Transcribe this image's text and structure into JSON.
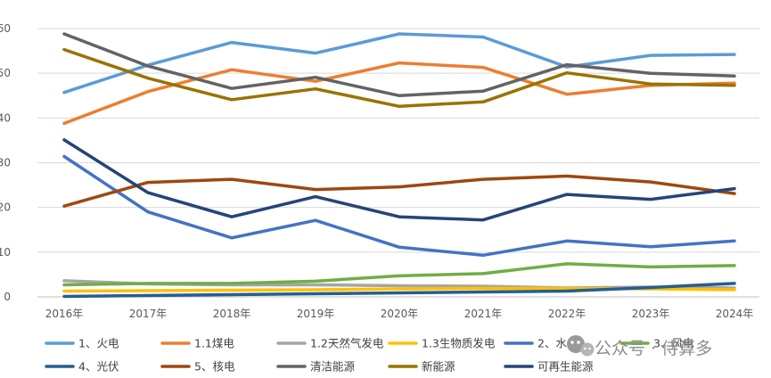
{
  "chart_data": {
    "type": "line",
    "title": "",
    "xlabel": "",
    "ylabel": "",
    "ylim": [
      0,
      60
    ],
    "y_ticks": [
      0,
      10,
      20,
      30,
      40,
      50,
      60
    ],
    "y_tick_labels": [
      "0",
      "10",
      "20",
      "30",
      "40",
      "50",
      "60"
    ],
    "grid": "horizontal",
    "legend_position": "bottom",
    "categories": [
      "2016年",
      "2017年",
      "2018年",
      "2019年",
      "2020年",
      "2021年",
      "2022年",
      "2023年",
      "2024年"
    ],
    "series": [
      {
        "name": "1、火电",
        "color": "#5b9bd5",
        "values": [
          45.7,
          51.8,
          56.9,
          54.5,
          58.8,
          58.1,
          51.4,
          54.0,
          54.2
        ]
      },
      {
        "name": "1.1煤电",
        "color": "#ed7d31",
        "values": [
          38.8,
          45.9,
          50.8,
          48.2,
          52.3,
          51.3,
          45.3,
          47.3,
          47.8
        ]
      },
      {
        "name": "1.2天然气发电",
        "color": "#a5a5a5",
        "values": [
          3.6,
          2.9,
          2.7,
          2.7,
          2.5,
          2.4,
          2.0,
          2.2,
          2.0
        ]
      },
      {
        "name": "1.3生物质发电",
        "color": "#ffc000",
        "values": [
          1.3,
          1.4,
          1.5,
          1.6,
          1.8,
          1.9,
          1.9,
          1.8,
          1.6
        ]
      },
      {
        "name": "2、水电",
        "color": "#4472c4",
        "values": [
          31.4,
          19.0,
          13.2,
          17.1,
          11.1,
          9.3,
          12.5,
          11.2,
          12.5
        ]
      },
      {
        "name": "3、风电",
        "color": "#70ad47",
        "values": [
          2.7,
          3.0,
          3.0,
          3.5,
          4.7,
          5.2,
          7.4,
          6.7,
          7.0
        ]
      },
      {
        "name": "4、光伏",
        "color": "#255e91",
        "values": [
          0.1,
          0.3,
          0.5,
          0.7,
          0.9,
          1.1,
          1.3,
          2.1,
          3.0
        ]
      },
      {
        "name": "5、核电",
        "color": "#9e480e",
        "values": [
          20.3,
          25.6,
          26.3,
          24.0,
          24.6,
          26.3,
          27.0,
          25.7,
          23.1
        ]
      },
      {
        "name": "清洁能源",
        "color": "#636363",
        "values": [
          58.8,
          51.6,
          46.6,
          49.1,
          45.0,
          46.0,
          51.9,
          50.0,
          49.4
        ]
      },
      {
        "name": "新能源",
        "color": "#997300",
        "values": [
          55.3,
          48.9,
          44.1,
          46.5,
          42.6,
          43.6,
          50.1,
          47.6,
          47.3
        ]
      },
      {
        "name": "可再生能源",
        "color": "#264478",
        "values": [
          35.1,
          23.3,
          17.9,
          22.4,
          17.9,
          17.2,
          22.9,
          21.8,
          24.2
        ]
      }
    ]
  },
  "watermark": {
    "text": "公众号 · 侍算多",
    "icon": "wechat-icon"
  }
}
